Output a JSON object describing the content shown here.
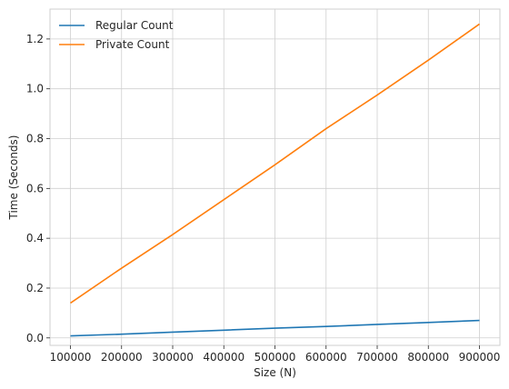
{
  "chart_data": {
    "type": "line",
    "xlabel": "Size (N)",
    "ylabel": "Time (Seconds)",
    "xlim": [
      60000,
      940000
    ],
    "ylim": [
      -0.03,
      1.32
    ],
    "xticks": [
      100000,
      200000,
      300000,
      400000,
      500000,
      600000,
      700000,
      800000,
      900000
    ],
    "yticks": [
      0.0,
      0.2,
      0.4,
      0.6,
      0.8,
      1.0,
      1.2
    ],
    "ytick_labels": [
      "0.0",
      "0.2",
      "0.4",
      "0.6",
      "0.8",
      "1.0",
      "1.2"
    ],
    "grid": true,
    "legend_position": "top-left",
    "x": [
      100000,
      200000,
      300000,
      400000,
      500000,
      600000,
      700000,
      800000,
      900000
    ],
    "series": [
      {
        "name": "Regular Count",
        "color": "#1f77b4",
        "values": [
          0.008,
          0.015,
          0.023,
          0.031,
          0.039,
          0.046,
          0.054,
          0.062,
          0.07
        ]
      },
      {
        "name": "Private Count",
        "color": "#ff7f0e",
        "values": [
          0.14,
          0.28,
          0.415,
          0.555,
          0.695,
          0.84,
          0.975,
          1.115,
          1.26
        ]
      }
    ]
  }
}
